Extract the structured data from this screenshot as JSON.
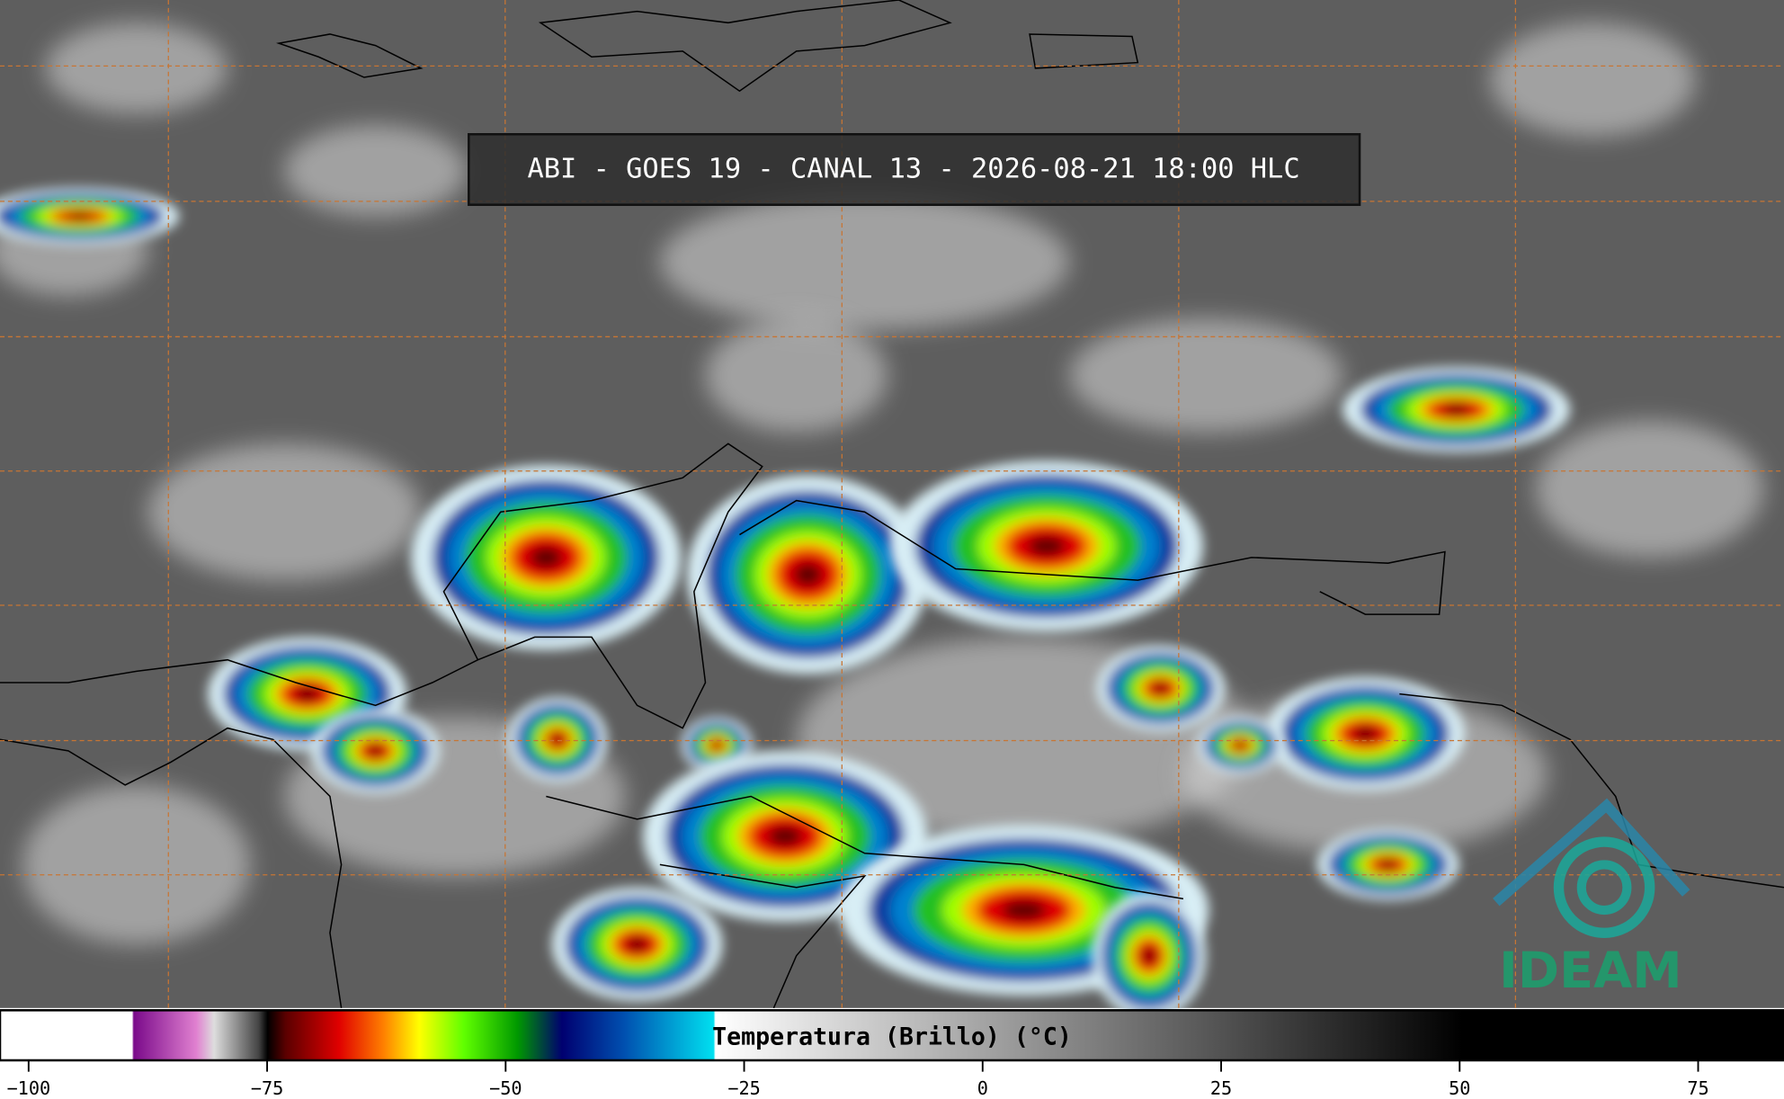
{
  "header": {
    "title": "ABI - GOES 19 - CANAL 13 - 2026-08-21 18:00 HLC"
  },
  "logo": {
    "text": "IDEAM"
  },
  "colorbar": {
    "label": "Temperatura (Brillo) (°C)",
    "range": [
      -103,
      84
    ],
    "ticks": [
      {
        "value": -100,
        "label": "−100"
      },
      {
        "value": -75,
        "label": "−75"
      },
      {
        "value": -50,
        "label": "−50"
      },
      {
        "value": -25,
        "label": "−25"
      },
      0,
      25,
      50,
      75
    ]
  }
}
